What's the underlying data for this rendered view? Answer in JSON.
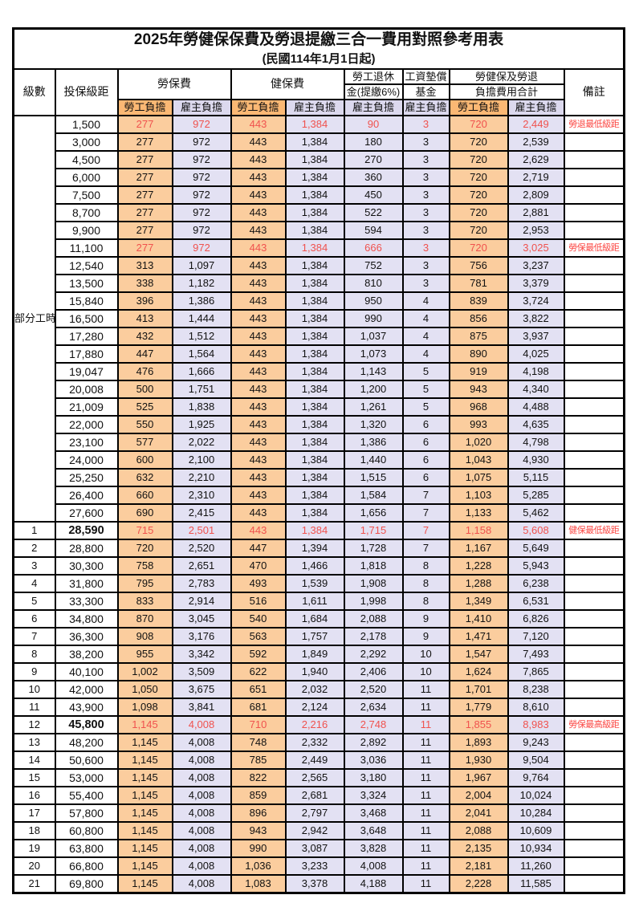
{
  "page": {
    "title": "2025年勞健保保費及勞退提繳三合一費用對照參考用表",
    "subtitle": "(民國114年1月1日起)"
  },
  "header": {
    "level": "級數",
    "bracket": "投保級距",
    "labor": "勞保費",
    "health": "健保費",
    "pension1": "勞工退休",
    "pension2": "金(提繳6%)",
    "arrear1": "工資墊償",
    "arrear2": "基金",
    "total1": "勞健保及勞退",
    "total2": "負擔費用合計",
    "note": "備註",
    "employee": "勞工負擔",
    "employer": "雇主負擔"
  },
  "colors": {
    "employee_data_bg": "#FBCD9E",
    "employee_header_bg": "#FBB874",
    "employer_data_bg": "#E3E1F3",
    "employer_header_bg": "#DCD9EE",
    "highlight_text": "#F0524E",
    "note_text": "#FB4642"
  },
  "part_time_label": "部分工時",
  "part_time_rowspan": 23,
  "rows": [
    {
      "bracket": "1,500",
      "labor_emp": "277",
      "labor_er": "972",
      "health_emp": "443",
      "health_er": "1,384",
      "pension_er": "90",
      "arrear_er": "3",
      "total_emp": "720",
      "total_er": "2,449",
      "note": "勞退最低級距",
      "red": true
    },
    {
      "bracket": "3,000",
      "labor_emp": "277",
      "labor_er": "972",
      "health_emp": "443",
      "health_er": "1,384",
      "pension_er": "180",
      "arrear_er": "3",
      "total_emp": "720",
      "total_er": "2,539",
      "note": ""
    },
    {
      "bracket": "4,500",
      "labor_emp": "277",
      "labor_er": "972",
      "health_emp": "443",
      "health_er": "1,384",
      "pension_er": "270",
      "arrear_er": "3",
      "total_emp": "720",
      "total_er": "2,629",
      "note": ""
    },
    {
      "bracket": "6,000",
      "labor_emp": "277",
      "labor_er": "972",
      "health_emp": "443",
      "health_er": "1,384",
      "pension_er": "360",
      "arrear_er": "3",
      "total_emp": "720",
      "total_er": "2,719",
      "note": ""
    },
    {
      "bracket": "7,500",
      "labor_emp": "277",
      "labor_er": "972",
      "health_emp": "443",
      "health_er": "1,384",
      "pension_er": "450",
      "arrear_er": "3",
      "total_emp": "720",
      "total_er": "2,809",
      "note": ""
    },
    {
      "bracket": "8,700",
      "labor_emp": "277",
      "labor_er": "972",
      "health_emp": "443",
      "health_er": "1,384",
      "pension_er": "522",
      "arrear_er": "3",
      "total_emp": "720",
      "total_er": "2,881",
      "note": ""
    },
    {
      "bracket": "9,900",
      "labor_emp": "277",
      "labor_er": "972",
      "health_emp": "443",
      "health_er": "1,384",
      "pension_er": "594",
      "arrear_er": "3",
      "total_emp": "720",
      "total_er": "2,953",
      "note": ""
    },
    {
      "bracket": "11,100",
      "labor_emp": "277",
      "labor_er": "972",
      "health_emp": "443",
      "health_er": "1,384",
      "pension_er": "666",
      "arrear_er": "3",
      "total_emp": "720",
      "total_er": "3,025",
      "note": "勞保最低級距",
      "red": true
    },
    {
      "bracket": "12,540",
      "labor_emp": "313",
      "labor_er": "1,097",
      "health_emp": "443",
      "health_er": "1,384",
      "pension_er": "752",
      "arrear_er": "3",
      "total_emp": "756",
      "total_er": "3,237",
      "note": ""
    },
    {
      "bracket": "13,500",
      "labor_emp": "338",
      "labor_er": "1,182",
      "health_emp": "443",
      "health_er": "1,384",
      "pension_er": "810",
      "arrear_er": "3",
      "total_emp": "781",
      "total_er": "3,379",
      "note": ""
    },
    {
      "bracket": "15,840",
      "labor_emp": "396",
      "labor_er": "1,386",
      "health_emp": "443",
      "health_er": "1,384",
      "pension_er": "950",
      "arrear_er": "4",
      "total_emp": "839",
      "total_er": "3,724",
      "note": ""
    },
    {
      "bracket": "16,500",
      "labor_emp": "413",
      "labor_er": "1,444",
      "health_emp": "443",
      "health_er": "1,384",
      "pension_er": "990",
      "arrear_er": "4",
      "total_emp": "856",
      "total_er": "3,822",
      "note": ""
    },
    {
      "bracket": "17,280",
      "labor_emp": "432",
      "labor_er": "1,512",
      "health_emp": "443",
      "health_er": "1,384",
      "pension_er": "1,037",
      "arrear_er": "4",
      "total_emp": "875",
      "total_er": "3,937",
      "note": ""
    },
    {
      "bracket": "17,880",
      "labor_emp": "447",
      "labor_er": "1,564",
      "health_emp": "443",
      "health_er": "1,384",
      "pension_er": "1,073",
      "arrear_er": "4",
      "total_emp": "890",
      "total_er": "4,025",
      "note": ""
    },
    {
      "bracket": "19,047",
      "labor_emp": "476",
      "labor_er": "1,666",
      "health_emp": "443",
      "health_er": "1,384",
      "pension_er": "1,143",
      "arrear_er": "5",
      "total_emp": "919",
      "total_er": "4,198",
      "note": ""
    },
    {
      "bracket": "20,008",
      "labor_emp": "500",
      "labor_er": "1,751",
      "health_emp": "443",
      "health_er": "1,384",
      "pension_er": "1,200",
      "arrear_er": "5",
      "total_emp": "943",
      "total_er": "4,340",
      "note": ""
    },
    {
      "bracket": "21,009",
      "labor_emp": "525",
      "labor_er": "1,838",
      "health_emp": "443",
      "health_er": "1,384",
      "pension_er": "1,261",
      "arrear_er": "5",
      "total_emp": "968",
      "total_er": "4,488",
      "note": ""
    },
    {
      "bracket": "22,000",
      "labor_emp": "550",
      "labor_er": "1,925",
      "health_emp": "443",
      "health_er": "1,384",
      "pension_er": "1,320",
      "arrear_er": "6",
      "total_emp": "993",
      "total_er": "4,635",
      "note": ""
    },
    {
      "bracket": "23,100",
      "labor_emp": "577",
      "labor_er": "2,022",
      "health_emp": "443",
      "health_er": "1,384",
      "pension_er": "1,386",
      "arrear_er": "6",
      "total_emp": "1,020",
      "total_er": "4,798",
      "note": ""
    },
    {
      "bracket": "24,000",
      "labor_emp": "600",
      "labor_er": "2,100",
      "health_emp": "443",
      "health_er": "1,384",
      "pension_er": "1,440",
      "arrear_er": "6",
      "total_emp": "1,043",
      "total_er": "4,930",
      "note": ""
    },
    {
      "bracket": "25,250",
      "labor_emp": "632",
      "labor_er": "2,210",
      "health_emp": "443",
      "health_er": "1,384",
      "pension_er": "1,515",
      "arrear_er": "6",
      "total_emp": "1,075",
      "total_er": "5,115",
      "note": ""
    },
    {
      "bracket": "26,400",
      "labor_emp": "660",
      "labor_er": "2,310",
      "health_emp": "443",
      "health_er": "1,384",
      "pension_er": "1,584",
      "arrear_er": "7",
      "total_emp": "1,103",
      "total_er": "5,285",
      "note": ""
    },
    {
      "bracket": "27,600",
      "labor_emp": "690",
      "labor_er": "2,415",
      "health_emp": "443",
      "health_er": "1,384",
      "pension_er": "1,656",
      "arrear_er": "7",
      "total_emp": "1,133",
      "total_er": "5,462",
      "note": ""
    },
    {
      "level": "1",
      "bracket": "28,590",
      "labor_emp": "715",
      "labor_er": "2,501",
      "health_emp": "443",
      "health_er": "1,384",
      "pension_er": "1,715",
      "arrear_er": "7",
      "total_emp": "1,158",
      "total_er": "5,608",
      "note": "健保最低級距",
      "red": true,
      "bold": true
    },
    {
      "level": "2",
      "bracket": "28,800",
      "labor_emp": "720",
      "labor_er": "2,520",
      "health_emp": "447",
      "health_er": "1,394",
      "pension_er": "1,728",
      "arrear_er": "7",
      "total_emp": "1,167",
      "total_er": "5,649",
      "note": ""
    },
    {
      "level": "3",
      "bracket": "30,300",
      "labor_emp": "758",
      "labor_er": "2,651",
      "health_emp": "470",
      "health_er": "1,466",
      "pension_er": "1,818",
      "arrear_er": "8",
      "total_emp": "1,228",
      "total_er": "5,943",
      "note": ""
    },
    {
      "level": "4",
      "bracket": "31,800",
      "labor_emp": "795",
      "labor_er": "2,783",
      "health_emp": "493",
      "health_er": "1,539",
      "pension_er": "1,908",
      "arrear_er": "8",
      "total_emp": "1,288",
      "total_er": "6,238",
      "note": ""
    },
    {
      "level": "5",
      "bracket": "33,300",
      "labor_emp": "833",
      "labor_er": "2,914",
      "health_emp": "516",
      "health_er": "1,611",
      "pension_er": "1,998",
      "arrear_er": "8",
      "total_emp": "1,349",
      "total_er": "6,531",
      "note": ""
    },
    {
      "level": "6",
      "bracket": "34,800",
      "labor_emp": "870",
      "labor_er": "3,045",
      "health_emp": "540",
      "health_er": "1,684",
      "pension_er": "2,088",
      "arrear_er": "9",
      "total_emp": "1,410",
      "total_er": "6,826",
      "note": ""
    },
    {
      "level": "7",
      "bracket": "36,300",
      "labor_emp": "908",
      "labor_er": "3,176",
      "health_emp": "563",
      "health_er": "1,757",
      "pension_er": "2,178",
      "arrear_er": "9",
      "total_emp": "1,471",
      "total_er": "7,120",
      "note": ""
    },
    {
      "level": "8",
      "bracket": "38,200",
      "labor_emp": "955",
      "labor_er": "3,342",
      "health_emp": "592",
      "health_er": "1,849",
      "pension_er": "2,292",
      "arrear_er": "10",
      "total_emp": "1,547",
      "total_er": "7,493",
      "note": ""
    },
    {
      "level": "9",
      "bracket": "40,100",
      "labor_emp": "1,002",
      "labor_er": "3,509",
      "health_emp": "622",
      "health_er": "1,940",
      "pension_er": "2,406",
      "arrear_er": "10",
      "total_emp": "1,624",
      "total_er": "7,865",
      "note": ""
    },
    {
      "level": "10",
      "bracket": "42,000",
      "labor_emp": "1,050",
      "labor_er": "3,675",
      "health_emp": "651",
      "health_er": "2,032",
      "pension_er": "2,520",
      "arrear_er": "11",
      "total_emp": "1,701",
      "total_er": "8,238",
      "note": ""
    },
    {
      "level": "11",
      "bracket": "43,900",
      "labor_emp": "1,098",
      "labor_er": "3,841",
      "health_emp": "681",
      "health_er": "2,124",
      "pension_er": "2,634",
      "arrear_er": "11",
      "total_emp": "1,779",
      "total_er": "8,610",
      "note": ""
    },
    {
      "level": "12",
      "bracket": "45,800",
      "labor_emp": "1,145",
      "labor_er": "4,008",
      "health_emp": "710",
      "health_er": "2,216",
      "pension_er": "2,748",
      "arrear_er": "11",
      "total_emp": "1,855",
      "total_er": "8,983",
      "note": "勞保最高級距",
      "red": true,
      "bold": true
    },
    {
      "level": "13",
      "bracket": "48,200",
      "labor_emp": "1,145",
      "labor_er": "4,008",
      "health_emp": "748",
      "health_er": "2,332",
      "pension_er": "2,892",
      "arrear_er": "11",
      "total_emp": "1,893",
      "total_er": "9,243",
      "note": ""
    },
    {
      "level": "14",
      "bracket": "50,600",
      "labor_emp": "1,145",
      "labor_er": "4,008",
      "health_emp": "785",
      "health_er": "2,449",
      "pension_er": "3,036",
      "arrear_er": "11",
      "total_emp": "1,930",
      "total_er": "9,504",
      "note": ""
    },
    {
      "level": "15",
      "bracket": "53,000",
      "labor_emp": "1,145",
      "labor_er": "4,008",
      "health_emp": "822",
      "health_er": "2,565",
      "pension_er": "3,180",
      "arrear_er": "11",
      "total_emp": "1,967",
      "total_er": "9,764",
      "note": ""
    },
    {
      "level": "16",
      "bracket": "55,400",
      "labor_emp": "1,145",
      "labor_er": "4,008",
      "health_emp": "859",
      "health_er": "2,681",
      "pension_er": "3,324",
      "arrear_er": "11",
      "total_emp": "2,004",
      "total_er": "10,024",
      "note": ""
    },
    {
      "level": "17",
      "bracket": "57,800",
      "labor_emp": "1,145",
      "labor_er": "4,008",
      "health_emp": "896",
      "health_er": "2,797",
      "pension_er": "3,468",
      "arrear_er": "11",
      "total_emp": "2,041",
      "total_er": "10,284",
      "note": ""
    },
    {
      "level": "18",
      "bracket": "60,800",
      "labor_emp": "1,145",
      "labor_er": "4,008",
      "health_emp": "943",
      "health_er": "2,942",
      "pension_er": "3,648",
      "arrear_er": "11",
      "total_emp": "2,088",
      "total_er": "10,609",
      "note": ""
    },
    {
      "level": "19",
      "bracket": "63,800",
      "labor_emp": "1,145",
      "labor_er": "4,008",
      "health_emp": "990",
      "health_er": "3,087",
      "pension_er": "3,828",
      "arrear_er": "11",
      "total_emp": "2,135",
      "total_er": "10,934",
      "note": ""
    },
    {
      "level": "20",
      "bracket": "66,800",
      "labor_emp": "1,145",
      "labor_er": "4,008",
      "health_emp": "1,036",
      "health_er": "3,233",
      "pension_er": "4,008",
      "arrear_er": "11",
      "total_emp": "2,181",
      "total_er": "11,260",
      "note": ""
    },
    {
      "level": "21",
      "bracket": "69,800",
      "labor_emp": "1,145",
      "labor_er": "4,008",
      "health_emp": "1,083",
      "health_er": "3,378",
      "pension_er": "4,188",
      "arrear_er": "11",
      "total_emp": "2,228",
      "total_er": "11,585",
      "note": ""
    }
  ]
}
